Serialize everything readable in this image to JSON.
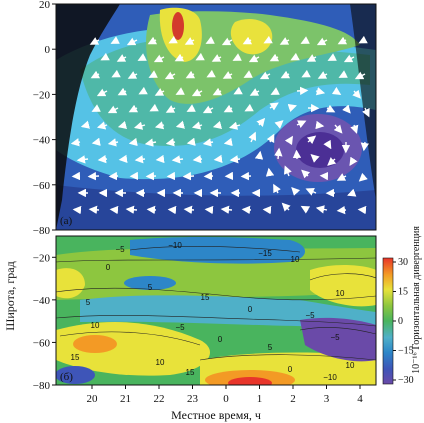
{
  "chart_data": [
    {
      "panel_label": "(а)",
      "type": "heatmap",
      "ylim": [
        -80,
        20
      ],
      "yticks": [
        "20",
        "0",
        "−20",
        "−40",
        "−60",
        "−80"
      ],
      "overlay": "wind vectors (white arrows)"
    },
    {
      "panel_label": "(б)",
      "type": "heatmap",
      "ylim": [
        -80,
        -10
      ],
      "yticks": [
        "−20",
        "−40",
        "−60",
        "−80"
      ],
      "xlabel": "Местное время, ч",
      "xticks": [
        "20",
        "21",
        "22",
        "23",
        "0",
        "1",
        "2",
        "3",
        "4"
      ],
      "contour_labels": [
        "−5",
        "−10",
        "−15",
        "10",
        "0",
        "5",
        "15",
        "10",
        "5",
        "0",
        "−5",
        "10",
        "15",
        "−5",
        "0",
        "5",
        "10",
        "15",
        "−5",
        "10",
        "0",
        "−10"
      ]
    }
  ],
  "shared": {
    "ylabel": "Широта, град",
    "colorbar": {
      "label": "10⁻¹⁶ Горизонтальная дивергенция",
      "ticks": [
        "30",
        "15",
        "0",
        "−15",
        "−30"
      ],
      "range": [
        -30,
        30
      ],
      "colors": [
        "#6a4aa8",
        "#3e55b8",
        "#2d86c8",
        "#4fb0c8",
        "#49b45e",
        "#8dc63f",
        "#e8e23a",
        "#f39a25",
        "#e8352a"
      ]
    }
  }
}
